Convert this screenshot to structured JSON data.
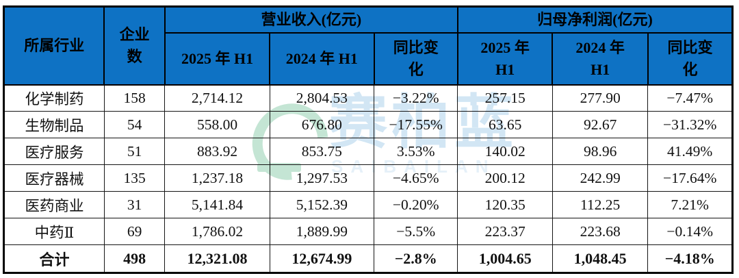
{
  "colors": {
    "header_bg": "#0E72C4",
    "header_text": "#000000",
    "grid_border": "#000000",
    "body_text": "#111111",
    "watermark_green": "#2FA567",
    "watermark_blue": "#5FA8D8"
  },
  "watermark": {
    "cn": "赛柏蓝",
    "en": "SAIBAILAN"
  },
  "table": {
    "header": {
      "industry": "所属行业",
      "company_count_l1": "企业",
      "company_count_l2": "数",
      "revenue_group": "营业收入(亿元)",
      "profit_group": "归母净利润(亿元)",
      "rev_2025": "2025 年 H1",
      "rev_2024": "2024 年 H1",
      "rev_yoy_l1": "同比变",
      "rev_yoy_l2": "化",
      "profit_2025_l1": "2025 年",
      "profit_2025_l2": "H1",
      "profit_2024_l1": "2024 年",
      "profit_2024_l2": "H1",
      "profit_yoy_l1": "同比变",
      "profit_yoy_l2": "化"
    },
    "rows": [
      [
        "化学制药",
        "158",
        "2,714.12",
        "2,804.53",
        "−3.22%",
        "257.15",
        "277.90",
        "−7.47%"
      ],
      [
        "生物制品",
        "54",
        "558.00",
        "676.80",
        "−17.55%",
        "63.65",
        "92.67",
        "−31.32%"
      ],
      [
        "医疗服务",
        "51",
        "883.92",
        "853.75",
        "3.53%",
        "140.02",
        "98.96",
        "41.49%"
      ],
      [
        "医疗器械",
        "135",
        "1,237.18",
        "1,297.53",
        "−4.65%",
        "200.12",
        "242.99",
        "−17.64%"
      ],
      [
        "医药商业",
        "31",
        "5,141.84",
        "5,152.39",
        "−0.20%",
        "120.35",
        "112.25",
        "7.21%"
      ],
      [
        "中药Ⅱ",
        "69",
        "1,786.02",
        "1,889.99",
        "−5.5%",
        "223.37",
        "223.68",
        "−0.14%"
      ]
    ],
    "total": [
      "合计",
      "498",
      "12,321.08",
      "12,674.99",
      "−2.8%",
      "1,004.65",
      "1,048.45",
      "−4.18%"
    ]
  },
  "chart_data": {
    "type": "table",
    "title": "医药行业 2025年H1 营业收入与归母净利润统计",
    "columns": [
      "所属行业",
      "企业数",
      "营业收入(亿元) 2025年H1",
      "营业收入(亿元) 2024年H1",
      "营业收入 同比变化",
      "归母净利润(亿元) 2025年H1",
      "归母净利润(亿元) 2024年H1",
      "归母净利润 同比变化"
    ],
    "rows": [
      [
        "化学制药",
        158,
        2714.12,
        2804.53,
        "-3.22%",
        257.15,
        277.9,
        "-7.47%"
      ],
      [
        "生物制品",
        54,
        558.0,
        676.8,
        "-17.55%",
        63.65,
        92.67,
        "-31.32%"
      ],
      [
        "医疗服务",
        51,
        883.92,
        853.75,
        "3.53%",
        140.02,
        98.96,
        "41.49%"
      ],
      [
        "医疗器械",
        135,
        1237.18,
        1297.53,
        "-4.65%",
        200.12,
        242.99,
        "-17.64%"
      ],
      [
        "医药商业",
        31,
        5141.84,
        5152.39,
        "-0.20%",
        120.35,
        112.25,
        "7.21%"
      ],
      [
        "中药Ⅱ",
        69,
        1786.02,
        1889.99,
        "-5.5%",
        223.37,
        223.68,
        "-0.14%"
      ],
      [
        "合计",
        498,
        12321.08,
        12674.99,
        "-2.8%",
        1004.65,
        1048.45,
        "-4.18%"
      ]
    ]
  }
}
